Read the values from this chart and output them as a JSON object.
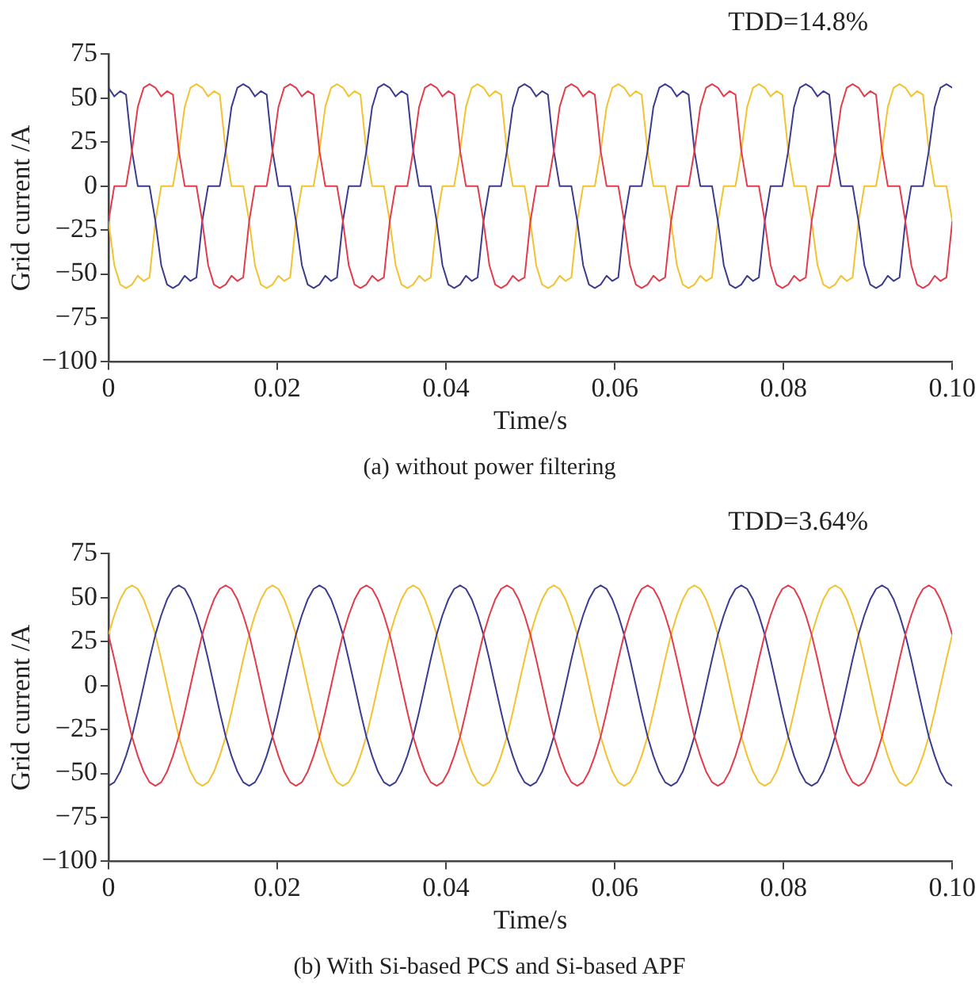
{
  "chart_data": [
    {
      "type": "line",
      "xlabel": "Time/s",
      "ylabel": "Grid current /A",
      "annotations": [
        "TDD=14.8%",
        "(a) without power filtering"
      ],
      "x": [
        0,
        0.00069,
        0.00139,
        0.00208,
        0.00278,
        0.00347,
        0.00417,
        0.00486,
        0.00556,
        0.00625,
        0.00694,
        0.00764,
        0.00833,
        0.00903,
        0.00972,
        0.01042,
        0.01111,
        0.01181,
        0.0125,
        0.01319,
        0.01389,
        0.01458,
        0.01528,
        0.01597,
        0.01667,
        0.01736,
        0.01806,
        0.01875,
        0.01944,
        0.02014,
        0.02083,
        0.02153,
        0.02222,
        0.02292,
        0.02361,
        0.02431,
        0.025,
        0.02569,
        0.02639,
        0.02708,
        0.02778,
        0.02847,
        0.02917,
        0.02986,
        0.03056,
        0.03125,
        0.03194,
        0.03264,
        0.03333,
        0.03403,
        0.03472,
        0.03542,
        0.03611,
        0.03681,
        0.0375,
        0.03819,
        0.03889,
        0.03958,
        0.04028,
        0.04097,
        0.04167,
        0.04236,
        0.04306,
        0.04375,
        0.04444,
        0.04514,
        0.04583,
        0.04653,
        0.04722,
        0.04792,
        0.04861,
        0.04931,
        0.05,
        0.05069,
        0.05139,
        0.05208,
        0.05278,
        0.05347,
        0.05417,
        0.05486,
        0.05556,
        0.05625,
        0.05694,
        0.05764,
        0.05833,
        0.05903,
        0.05972,
        0.06042,
        0.06111,
        0.06181,
        0.0625,
        0.06319,
        0.06389,
        0.06458,
        0.06528,
        0.06597,
        0.06667,
        0.06736,
        0.06806,
        0.06875,
        0.06944,
        0.07014,
        0.07083,
        0.07153,
        0.07222,
        0.07292,
        0.07361,
        0.07431,
        0.075,
        0.07569,
        0.07639,
        0.07708,
        0.07778,
        0.07847,
        0.07917,
        0.07986,
        0.08056,
        0.08125,
        0.08194,
        0.08264,
        0.08333,
        0.08403,
        0.08472,
        0.08542,
        0.08611,
        0.08681,
        0.0875,
        0.08819,
        0.08889,
        0.08958,
        0.09028,
        0.09097,
        0.09167,
        0.09236,
        0.09306,
        0.09375,
        0.09444,
        0.09514,
        0.09583,
        0.09653,
        0.09722,
        0.09792,
        0.09861,
        0.09931,
        0.1
      ],
      "series": [
        {
          "color": "#e23b4b",
          "values": [
            -20,
            0,
            0,
            0,
            20,
            45,
            56,
            58,
            56,
            51,
            54,
            52,
            20,
            0,
            0,
            0,
            -20,
            -45,
            -56,
            -58,
            -56,
            -51,
            -54,
            -52,
            -20,
            0,
            0,
            0,
            20,
            45,
            56,
            58,
            56,
            51,
            54,
            52,
            20,
            0,
            0,
            0,
            -20,
            -45,
            -56,
            -58,
            -56,
            -51,
            -54,
            -52,
            -20,
            0,
            0,
            0,
            20,
            45,
            56,
            58,
            56,
            51,
            54,
            52,
            20,
            0,
            0,
            0,
            -20,
            -45,
            -56,
            -58,
            -56,
            -51,
            -54,
            -52,
            -20,
            0,
            0,
            0,
            20,
            45,
            56,
            58,
            56,
            51,
            54,
            52,
            20,
            0,
            0,
            0,
            -20,
            -45,
            -56,
            -58,
            -56,
            -51,
            -54,
            -52,
            -20,
            0,
            0,
            0,
            20,
            45,
            56,
            58,
            56,
            51,
            54,
            52,
            20,
            0,
            0,
            0,
            -20,
            -45,
            -56,
            -58,
            -56,
            -51,
            -54,
            -52,
            -20,
            0,
            0,
            0,
            20,
            45,
            56,
            58,
            56,
            51,
            54,
            52,
            20,
            0,
            0,
            0,
            -20,
            -45,
            -56,
            -58,
            -56,
            -51,
            -54,
            -52,
            -20
          ]
        },
        {
          "color": "#3b3b8f",
          "values": [
            56,
            51,
            54,
            52,
            20,
            0,
            0,
            0,
            -20,
            -45,
            -56,
            -58,
            -56,
            -51,
            -54,
            -52,
            -20,
            0,
            0,
            0,
            20,
            45,
            56,
            58,
            56,
            51,
            54,
            52,
            20,
            0,
            0,
            0,
            -20,
            -45,
            -56,
            -58,
            -56,
            -51,
            -54,
            -52,
            -20,
            0,
            0,
            0,
            20,
            45,
            56,
            58,
            56,
            51,
            54,
            52,
            20,
            0,
            0,
            0,
            -20,
            -45,
            -56,
            -58,
            -56,
            -51,
            -54,
            -52,
            -20,
            0,
            0,
            0,
            20,
            45,
            56,
            58,
            56,
            51,
            54,
            52,
            20,
            0,
            0,
            0,
            -20,
            -45,
            -56,
            -58,
            -56,
            -51,
            -54,
            -52,
            -20,
            0,
            0,
            0,
            20,
            45,
            56,
            58,
            56,
            51,
            54,
            52,
            20,
            0,
            0,
            0,
            -20,
            -45,
            -56,
            -58,
            -56,
            -51,
            -54,
            -52,
            -20,
            0,
            0,
            0,
            20,
            45,
            56,
            58,
            56,
            51,
            54,
            52,
            20,
            0,
            0,
            0,
            -20,
            -45,
            -56,
            -58,
            -56,
            -51,
            -54,
            -52,
            -20,
            0,
            0,
            0,
            20,
            45,
            56,
            58,
            56
          ]
        },
        {
          "color": "#f2c230",
          "values": [
            -20,
            -45,
            -56,
            -58,
            -56,
            -51,
            -54,
            -52,
            -20,
            0,
            0,
            0,
            20,
            45,
            56,
            58,
            56,
            51,
            54,
            52,
            20,
            0,
            0,
            0,
            -20,
            -45,
            -56,
            -58,
            -56,
            -51,
            -54,
            -52,
            -20,
            0,
            0,
            0,
            20,
            45,
            56,
            58,
            56,
            51,
            54,
            52,
            20,
            0,
            0,
            0,
            -20,
            -45,
            -56,
            -58,
            -56,
            -51,
            -54,
            -52,
            -20,
            0,
            0,
            0,
            20,
            45,
            56,
            58,
            56,
            51,
            54,
            52,
            20,
            0,
            0,
            0,
            -20,
            -45,
            -56,
            -58,
            -56,
            -51,
            -54,
            -52,
            -20,
            0,
            0,
            0,
            20,
            45,
            56,
            58,
            56,
            51,
            54,
            52,
            20,
            0,
            0,
            0,
            -20,
            -45,
            -56,
            -58,
            -56,
            -51,
            -54,
            -52,
            -20,
            0,
            0,
            0,
            20,
            45,
            56,
            58,
            56,
            51,
            54,
            52,
            20,
            0,
            0,
            0,
            -20,
            -45,
            -56,
            -58,
            -56,
            -51,
            -54,
            -52,
            -20,
            0,
            0,
            0,
            20,
            45,
            56,
            58,
            56,
            51,
            54,
            52,
            20,
            0,
            0,
            0,
            -20
          ]
        }
      ],
      "xlim": [
        0,
        0.1
      ],
      "xticks": [
        0,
        0.02,
        0.04,
        0.06,
        0.08,
        {
          "value": 0.1,
          "label": "0.10"
        }
      ],
      "ylim": [
        -100,
        75
      ],
      "yticks": [
        {
          "value": -100,
          "label": "−100"
        },
        {
          "value": -75,
          "label": "−75"
        },
        {
          "value": -50,
          "label": "−50"
        },
        {
          "value": -25,
          "label": "−25"
        },
        0,
        25,
        50,
        75
      ],
      "grid": false,
      "legend": false
    },
    {
      "type": "line",
      "xlabel": "Time/s",
      "ylabel": "Grid current /A",
      "annotations": [
        "TDD=3.64%",
        "(b) With Si-based PCS and Si-based APF"
      ],
      "x": [
        0,
        0.00069,
        0.00139,
        0.00208,
        0.00278,
        0.00347,
        0.00417,
        0.00486,
        0.00556,
        0.00625,
        0.00694,
        0.00764,
        0.00833,
        0.00903,
        0.00972,
        0.01042,
        0.01111,
        0.01181,
        0.0125,
        0.01319,
        0.01389,
        0.01458,
        0.01528,
        0.01597,
        0.01667,
        0.01736,
        0.01806,
        0.01875,
        0.01944,
        0.02014,
        0.02083,
        0.02153,
        0.02222,
        0.02292,
        0.02361,
        0.02431,
        0.025,
        0.02569,
        0.02639,
        0.02708,
        0.02778,
        0.02847,
        0.02917,
        0.02986,
        0.03056,
        0.03125,
        0.03194,
        0.03264,
        0.03333,
        0.03403,
        0.03472,
        0.03542,
        0.03611,
        0.03681,
        0.0375,
        0.03819,
        0.03889,
        0.03958,
        0.04028,
        0.04097,
        0.04167,
        0.04236,
        0.04306,
        0.04375,
        0.04444,
        0.04514,
        0.04583,
        0.04653,
        0.04722,
        0.04792,
        0.04861,
        0.04931,
        0.05,
        0.05069,
        0.05139,
        0.05208,
        0.05278,
        0.05347,
        0.05417,
        0.05486,
        0.05556,
        0.05625,
        0.05694,
        0.05764,
        0.05833,
        0.05903,
        0.05972,
        0.06042,
        0.06111,
        0.06181,
        0.0625,
        0.06319,
        0.06389,
        0.06458,
        0.06528,
        0.06597,
        0.06667,
        0.06736,
        0.06806,
        0.06875,
        0.06944,
        0.07014,
        0.07083,
        0.07153,
        0.07222,
        0.07292,
        0.07361,
        0.07431,
        0.075,
        0.07569,
        0.07639,
        0.07708,
        0.07778,
        0.07847,
        0.07917,
        0.07986,
        0.08056,
        0.08125,
        0.08194,
        0.08264,
        0.08333,
        0.08403,
        0.08472,
        0.08542,
        0.08611,
        0.08681,
        0.0875,
        0.08819,
        0.08889,
        0.08958,
        0.09028,
        0.09097,
        0.09167,
        0.09236,
        0.09306,
        0.09375,
        0.09444,
        0.09514,
        0.09583,
        0.09653,
        0.09722,
        0.09792,
        0.09861,
        0.09931,
        0.1
      ],
      "series": [
        {
          "color": "#e23b4b",
          "values": [
            29,
            15,
            0,
            -15,
            -29,
            -40,
            -49,
            -55,
            -57,
            -55,
            -49,
            -40,
            -29,
            -15,
            0,
            15,
            29,
            40,
            49,
            55,
            57,
            55,
            49,
            40,
            29,
            15,
            0,
            -15,
            -29,
            -40,
            -49,
            -55,
            -57,
            -55,
            -49,
            -40,
            -29,
            -15,
            0,
            15,
            29,
            40,
            49,
            55,
            57,
            55,
            49,
            40,
            29,
            15,
            0,
            -15,
            -29,
            -40,
            -49,
            -55,
            -57,
            -55,
            -49,
            -40,
            -29,
            -15,
            0,
            15,
            29,
            40,
            49,
            55,
            57,
            55,
            49,
            40,
            29,
            15,
            0,
            -15,
            -29,
            -40,
            -49,
            -55,
            -57,
            -55,
            -49,
            -40,
            -29,
            -15,
            0,
            15,
            29,
            40,
            49,
            55,
            57,
            55,
            49,
            40,
            29,
            15,
            0,
            -15,
            -29,
            -40,
            -49,
            -55,
            -57,
            -55,
            -49,
            -40,
            -29,
            -15,
            0,
            15,
            29,
            40,
            49,
            55,
            57,
            55,
            49,
            40,
            29,
            15,
            0,
            -15,
            -29,
            -40,
            -49,
            -55,
            -57,
            -55,
            -49,
            -40,
            -29,
            -15,
            0,
            15,
            29,
            40,
            49,
            55,
            57,
            55,
            49,
            40,
            29
          ]
        },
        {
          "color": "#3b3b8f",
          "values": [
            -57,
            -55,
            -49,
            -40,
            -29,
            -15,
            0,
            15,
            29,
            40,
            49,
            55,
            57,
            55,
            49,
            40,
            29,
            15,
            0,
            -15,
            -29,
            -40,
            -49,
            -55,
            -57,
            -55,
            -49,
            -40,
            -29,
            -15,
            0,
            15,
            29,
            40,
            49,
            55,
            57,
            55,
            49,
            40,
            29,
            15,
            0,
            -15,
            -29,
            -40,
            -49,
            -55,
            -57,
            -55,
            -49,
            -40,
            -29,
            -15,
            0,
            15,
            29,
            40,
            49,
            55,
            57,
            55,
            49,
            40,
            29,
            15,
            0,
            -15,
            -29,
            -40,
            -49,
            -55,
            -57,
            -55,
            -49,
            -40,
            -29,
            -15,
            0,
            15,
            29,
            40,
            49,
            55,
            57,
            55,
            49,
            40,
            29,
            15,
            0,
            -15,
            -29,
            -40,
            -49,
            -55,
            -57,
            -55,
            -49,
            -40,
            -29,
            -15,
            0,
            15,
            29,
            40,
            49,
            55,
            57,
            55,
            49,
            40,
            29,
            15,
            0,
            -15,
            -29,
            -40,
            -49,
            -55,
            -57,
            -55,
            -49,
            -40,
            -29,
            -15,
            0,
            15,
            29,
            40,
            49,
            55,
            57,
            55,
            49,
            40,
            29,
            15,
            0,
            -15,
            -29,
            -40,
            -49,
            -55,
            -57
          ]
        },
        {
          "color": "#f2c230",
          "values": [
            29,
            40,
            49,
            55,
            57,
            55,
            49,
            40,
            29,
            15,
            0,
            -15,
            -29,
            -40,
            -49,
            -55,
            -57,
            -55,
            -49,
            -40,
            -29,
            -15,
            0,
            15,
            29,
            40,
            49,
            55,
            57,
            55,
            49,
            40,
            29,
            15,
            0,
            -15,
            -29,
            -40,
            -49,
            -55,
            -57,
            -55,
            -49,
            -40,
            -29,
            -15,
            0,
            15,
            29,
            40,
            49,
            55,
            57,
            55,
            49,
            40,
            29,
            15,
            0,
            -15,
            -29,
            -40,
            -49,
            -55,
            -57,
            -55,
            -49,
            -40,
            -29,
            -15,
            0,
            15,
            29,
            40,
            49,
            55,
            57,
            55,
            49,
            40,
            29,
            15,
            0,
            -15,
            -29,
            -40,
            -49,
            -55,
            -57,
            -55,
            -49,
            -40,
            -29,
            -15,
            0,
            15,
            29,
            40,
            49,
            55,
            57,
            55,
            49,
            40,
            29,
            15,
            0,
            -15,
            -29,
            -40,
            -49,
            -55,
            -57,
            -55,
            -49,
            -40,
            -29,
            -15,
            0,
            15,
            29,
            40,
            49,
            55,
            57,
            55,
            49,
            40,
            29,
            15,
            0,
            -15,
            -29,
            -40,
            -49,
            -55,
            -57,
            -55,
            -49,
            -40,
            -29,
            -15,
            0,
            15,
            29
          ]
        }
      ],
      "xlim": [
        0,
        0.1
      ],
      "xticks": [
        0,
        0.02,
        0.04,
        0.06,
        0.08,
        {
          "value": 0.1,
          "label": "0.10"
        }
      ],
      "ylim": [
        -100,
        75
      ],
      "yticks": [
        {
          "value": -100,
          "label": "−100"
        },
        {
          "value": -75,
          "label": "−75"
        },
        {
          "value": -50,
          "label": "−50"
        },
        {
          "value": -25,
          "label": "−25"
        },
        0,
        25,
        50,
        75
      ],
      "grid": false,
      "legend": false
    }
  ]
}
